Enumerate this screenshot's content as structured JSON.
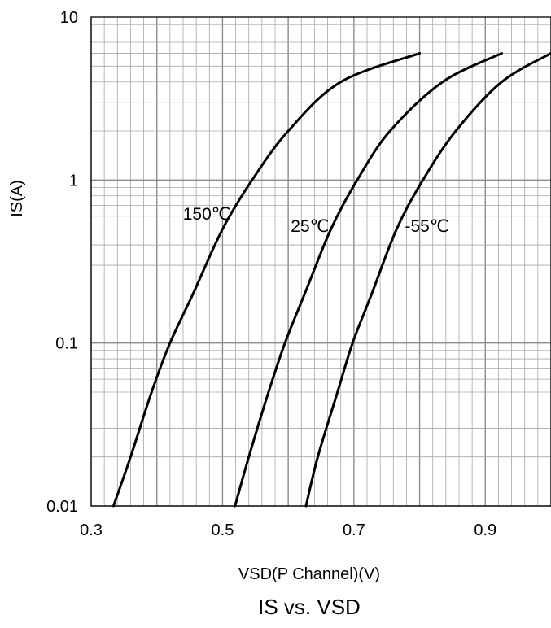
{
  "chart_data": {
    "type": "line",
    "title": "IS vs. VSD",
    "xlabel": "VSD(P Channel)(V)",
    "ylabel": "IS(A)",
    "xlim": [
      0.3,
      1.0
    ],
    "ylim": [
      0.01,
      10
    ],
    "y_scale": "log",
    "x_ticks": [
      "0.3",
      "0.5",
      "0.7",
      "0.9"
    ],
    "y_ticks": [
      "0.01",
      "0.1",
      "1",
      "10"
    ],
    "grid": true,
    "line_color": "#000000",
    "grid_color": "#a6a6a6",
    "series": [
      {
        "name": "150℃",
        "points": [
          [
            0.334,
            0.01
          ],
          [
            0.36,
            0.02
          ],
          [
            0.392,
            0.05
          ],
          [
            0.42,
            0.1
          ],
          [
            0.455,
            0.2
          ],
          [
            0.5,
            0.5
          ],
          [
            0.545,
            1.0
          ],
          [
            0.6,
            2.0
          ],
          [
            0.68,
            4.0
          ],
          [
            0.8,
            6.0
          ]
        ]
      },
      {
        "name": "25℃",
        "points": [
          [
            0.519,
            0.01
          ],
          [
            0.54,
            0.02
          ],
          [
            0.57,
            0.05
          ],
          [
            0.595,
            0.1
          ],
          [
            0.625,
            0.2
          ],
          [
            0.665,
            0.5
          ],
          [
            0.705,
            1.0
          ],
          [
            0.755,
            2.0
          ],
          [
            0.835,
            4.0
          ],
          [
            0.925,
            6.0
          ]
        ]
      },
      {
        "name": "-55℃",
        "points": [
          [
            0.627,
            0.01
          ],
          [
            0.645,
            0.02
          ],
          [
            0.675,
            0.05
          ],
          [
            0.698,
            0.1
          ],
          [
            0.727,
            0.2
          ],
          [
            0.765,
            0.5
          ],
          [
            0.805,
            1.0
          ],
          [
            0.855,
            2.0
          ],
          [
            0.925,
            4.0
          ],
          [
            1.0,
            6.0
          ]
        ]
      }
    ],
    "annotations": [
      {
        "text": "150℃",
        "x": 0.476,
        "y": 0.57
      },
      {
        "text": "25℃",
        "x": 0.633,
        "y": 0.48
      },
      {
        "text": "-55℃",
        "x": 0.811,
        "y": 0.48
      }
    ]
  }
}
